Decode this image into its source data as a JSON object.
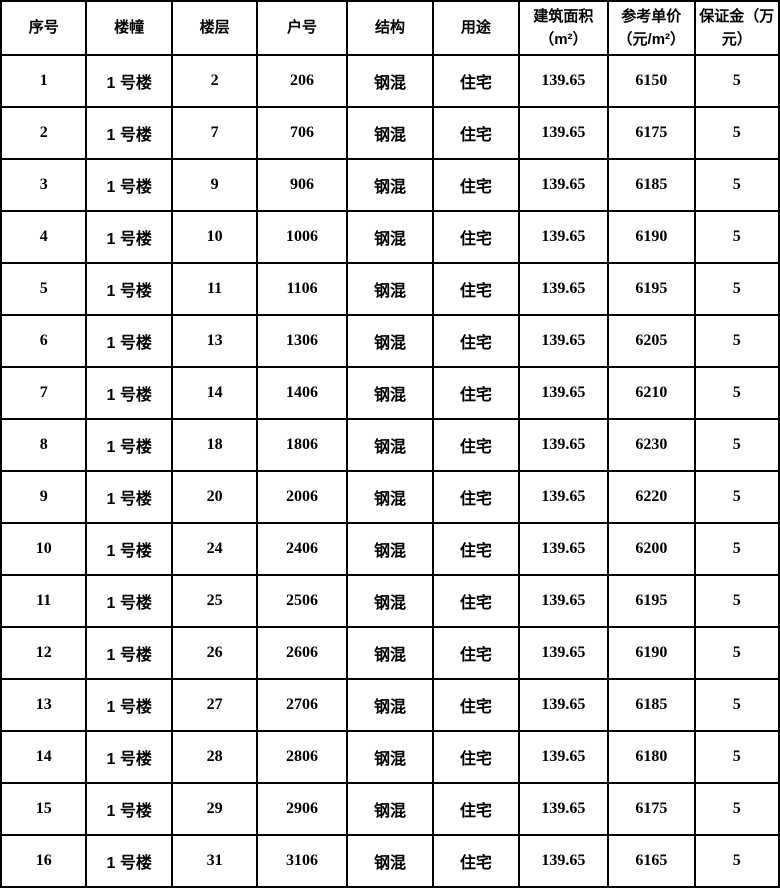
{
  "colors": {
    "border": "#000000",
    "text": "#000000",
    "background": "#ffffff"
  },
  "table": {
    "columns": [
      {
        "key": "xuhao",
        "label": "序号",
        "cjk": true
      },
      {
        "key": "louzhuang",
        "label": "楼幢",
        "cjk": true
      },
      {
        "key": "louceng",
        "label": "楼层",
        "cjk": false
      },
      {
        "key": "huhao",
        "label": "户号",
        "cjk": false
      },
      {
        "key": "jiegou",
        "label": "结构",
        "cjk": true
      },
      {
        "key": "yongtu",
        "label": "用途",
        "cjk": true
      },
      {
        "key": "mianji",
        "label": "建筑面积\n（m²）",
        "cjk": false
      },
      {
        "key": "danjia",
        "label": "参考单价\n（元/m²）",
        "cjk": false
      },
      {
        "key": "baozhengjin",
        "label": "保证金（万\n元）",
        "cjk": false
      }
    ],
    "rows": [
      [
        "1",
        "1 号楼",
        "2",
        "206",
        "钢混",
        "住宅",
        "139.65",
        "6150",
        "5"
      ],
      [
        "2",
        "1 号楼",
        "7",
        "706",
        "钢混",
        "住宅",
        "139.65",
        "6175",
        "5"
      ],
      [
        "3",
        "1 号楼",
        "9",
        "906",
        "钢混",
        "住宅",
        "139.65",
        "6185",
        "5"
      ],
      [
        "4",
        "1 号楼",
        "10",
        "1006",
        "钢混",
        "住宅",
        "139.65",
        "6190",
        "5"
      ],
      [
        "5",
        "1 号楼",
        "11",
        "1106",
        "钢混",
        "住宅",
        "139.65",
        "6195",
        "5"
      ],
      [
        "6",
        "1 号楼",
        "13",
        "1306",
        "钢混",
        "住宅",
        "139.65",
        "6205",
        "5"
      ],
      [
        "7",
        "1 号楼",
        "14",
        "1406",
        "钢混",
        "住宅",
        "139.65",
        "6210",
        "5"
      ],
      [
        "8",
        "1 号楼",
        "18",
        "1806",
        "钢混",
        "住宅",
        "139.65",
        "6230",
        "5"
      ],
      [
        "9",
        "1 号楼",
        "20",
        "2006",
        "钢混",
        "住宅",
        "139.65",
        "6220",
        "5"
      ],
      [
        "10",
        "1 号楼",
        "24",
        "2406",
        "钢混",
        "住宅",
        "139.65",
        "6200",
        "5"
      ],
      [
        "11",
        "1 号楼",
        "25",
        "2506",
        "钢混",
        "住宅",
        "139.65",
        "6195",
        "5"
      ],
      [
        "12",
        "1 号楼",
        "26",
        "2606",
        "钢混",
        "住宅",
        "139.65",
        "6190",
        "5"
      ],
      [
        "13",
        "1 号楼",
        "27",
        "2706",
        "钢混",
        "住宅",
        "139.65",
        "6185",
        "5"
      ],
      [
        "14",
        "1 号楼",
        "28",
        "2806",
        "钢混",
        "住宅",
        "139.65",
        "6180",
        "5"
      ],
      [
        "15",
        "1 号楼",
        "29",
        "2906",
        "钢混",
        "住宅",
        "139.65",
        "6175",
        "5"
      ],
      [
        "16",
        "1 号楼",
        "31",
        "3106",
        "钢混",
        "住宅",
        "139.65",
        "6165",
        "5"
      ]
    ]
  }
}
